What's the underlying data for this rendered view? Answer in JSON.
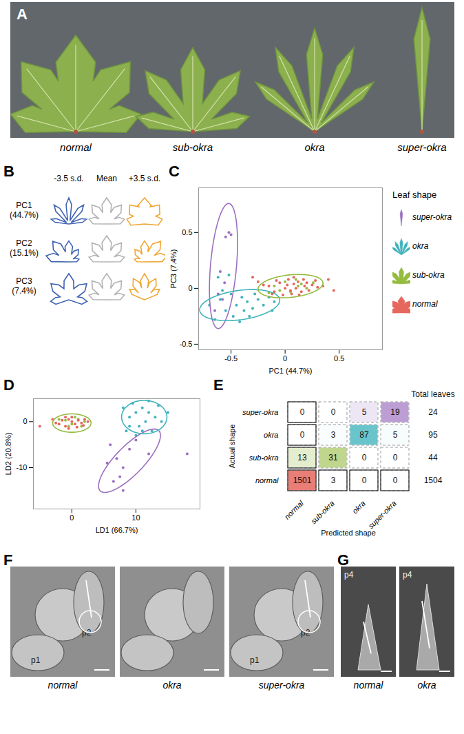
{
  "panels": {
    "A": {
      "title": "A",
      "labels": [
        "normal",
        "sub-okra",
        "okra",
        "super-okra"
      ]
    },
    "B": {
      "title": "B",
      "columns": [
        "-3.5 s.d.",
        "Mean",
        "+3.5 s.d."
      ],
      "rows": [
        [
          "PC1",
          "(44.7%)"
        ],
        [
          "PC2",
          "(15.1%)"
        ],
        [
          "PC3",
          "(7.4%)"
        ]
      ]
    },
    "F": {
      "title": "F",
      "images": [
        {
          "label": "normal",
          "marks": [
            "p2",
            "p1"
          ]
        },
        {
          "label": "okra",
          "marks": []
        },
        {
          "label": "super-okra",
          "marks": [
            "p2",
            "p1"
          ]
        }
      ]
    },
    "G": {
      "title": "G",
      "images": [
        {
          "label": "normal",
          "marks": [
            "p4"
          ]
        },
        {
          "label": "okra",
          "marks": [
            "p4"
          ]
        }
      ]
    }
  },
  "chart_data": [
    {
      "type": "scatter",
      "title": "C",
      "x_label": "PC1 (44.7%)",
      "y_label": "PC3 (7.4%)",
      "xlim": [
        -0.8,
        0.9
      ],
      "ylim": [
        -0.55,
        0.9
      ],
      "xticks": [
        -0.5,
        0,
        0.5
      ],
      "yticks": [
        -0.5,
        0,
        0.5
      ],
      "legend": "right",
      "legend_title": "Leaf shape",
      "series": [
        {
          "name": "super-okra",
          "color": "#9b6fc0",
          "values": [
            [
              -0.52,
              0.5
            ],
            [
              -0.5,
              0.48
            ],
            [
              -0.55,
              0.46
            ],
            [
              -0.6,
              0.15
            ],
            [
              -0.62,
              -0.05
            ],
            [
              -0.58,
              -0.1
            ],
            [
              -0.56,
              0.05
            ],
            [
              -0.65,
              -0.2
            ]
          ],
          "ellipse": {
            "center": [
              -0.57,
              0.2
            ],
            "axis1": [
              0.05,
              0.56
            ],
            "axis2": [
              0.12,
              -0.01
            ]
          }
        },
        {
          "name": "okra",
          "color": "#3fb3bd",
          "values": [
            [
              -0.7,
              -0.15
            ],
            [
              -0.65,
              -0.28
            ],
            [
              -0.6,
              -0.1
            ],
            [
              -0.55,
              -0.2
            ],
            [
              -0.5,
              -0.05
            ],
            [
              -0.48,
              -0.25
            ],
            [
              -0.45,
              -0.15
            ],
            [
              -0.4,
              -0.08
            ],
            [
              -0.38,
              -0.2
            ],
            [
              -0.35,
              -0.12
            ],
            [
              -0.3,
              -0.18
            ],
            [
              -0.28,
              -0.05
            ],
            [
              -0.25,
              -0.1
            ],
            [
              -0.2,
              -0.15
            ],
            [
              -0.15,
              -0.08
            ],
            [
              -0.12,
              -0.2
            ],
            [
              -0.42,
              -0.3
            ],
            [
              -0.58,
              -0.02
            ],
            [
              -0.33,
              -0.25
            ],
            [
              -0.1,
              -0.12
            ],
            [
              -0.62,
              0.1
            ],
            [
              -0.52,
              0.12
            ]
          ],
          "ellipse": {
            "center": [
              -0.42,
              -0.15
            ],
            "axis1": [
              0.37,
              0.05
            ],
            "axis2": [
              -0.02,
              0.13
            ]
          }
        },
        {
          "name": "sub-okra",
          "color": "#95bb3f",
          "values": [
            [
              -0.1,
              0.02
            ],
            [
              0.0,
              0.06
            ],
            [
              0.05,
              -0.03
            ],
            [
              0.12,
              0.02
            ],
            [
              0.2,
              0.0
            ],
            [
              0.26,
              0.05
            ],
            [
              -0.05,
              -0.02
            ],
            [
              0.1,
              0.08
            ],
            [
              -0.15,
              -0.04
            ],
            [
              0.15,
              0.04
            ]
          ],
          "ellipse": {
            "center": [
              0.05,
              0.02
            ],
            "axis1": [
              0.3,
              0.03
            ],
            "axis2": [
              -0.01,
              0.1
            ]
          }
        },
        {
          "name": "normal",
          "color": "#e5675d",
          "values": [
            [
              -0.15,
              0.02
            ],
            [
              -0.1,
              -0.03
            ],
            [
              -0.05,
              0.05
            ],
            [
              0,
              0
            ],
            [
              0.02,
              0.03
            ],
            [
              0.05,
              -0.02
            ],
            [
              0.08,
              0.04
            ],
            [
              0.1,
              0
            ],
            [
              0.12,
              0.06
            ],
            [
              0.15,
              -0.03
            ],
            [
              0.18,
              0.02
            ],
            [
              0.2,
              0.05
            ],
            [
              0.22,
              -0.02
            ],
            [
              0.25,
              0.03
            ],
            [
              0.3,
              0.01
            ],
            [
              -0.08,
              0.07
            ],
            [
              0.03,
              0.08
            ],
            [
              0.06,
              -0.05
            ],
            [
              0.13,
              -0.06
            ],
            [
              -0.02,
              -0.06
            ],
            [
              0.28,
              0.07
            ],
            [
              0.35,
              0.02
            ],
            [
              0.45,
              -0.02
            ],
            [
              -0.2,
              0.03
            ],
            [
              -0.12,
              -0.05
            ],
            [
              0.17,
              0.08
            ],
            [
              0.08,
              0.1
            ],
            [
              -0.25,
              0.06
            ],
            [
              0.4,
              0.08
            ],
            [
              -0.3,
              0.1
            ]
          ]
        }
      ]
    },
    {
      "type": "scatter",
      "title": "D",
      "x_label": "LD1 (66.7%)",
      "y_label": "LD2 (20.8%)",
      "xlim": [
        -6,
        20
      ],
      "ylim": [
        -19,
        5
      ],
      "xticks": [
        0,
        10
      ],
      "yticks": [
        -10,
        0
      ],
      "series": [
        {
          "name": "super-okra",
          "color": "#9b6fc0",
          "values": [
            [
              6,
              -5
            ],
            [
              7,
              -8
            ],
            [
              7.5,
              -12
            ],
            [
              8,
              -10
            ],
            [
              9,
              -6
            ],
            [
              10,
              -4
            ],
            [
              6.5,
              -13
            ],
            [
              5.5,
              -9
            ],
            [
              12,
              -7
            ],
            [
              18,
              -7
            ],
            [
              8,
              -15
            ]
          ],
          "ellipse": {
            "center": [
              9,
              -8.5
            ],
            "axis1": [
              4.3,
              6.8
            ],
            "axis2": [
              2.2,
              -1.2
            ]
          }
        },
        {
          "name": "okra",
          "color": "#3fb3bd",
          "values": [
            [
              8,
              3
            ],
            [
              9,
              1
            ],
            [
              9.5,
              4
            ],
            [
              10,
              2
            ],
            [
              10.5,
              -1
            ],
            [
              11,
              3
            ],
            [
              11.5,
              0
            ],
            [
              12,
              2
            ],
            [
              12.5,
              -2
            ],
            [
              13,
              1
            ],
            [
              13.5,
              3.5
            ],
            [
              10,
              -3
            ],
            [
              11,
              -2
            ],
            [
              9,
              -1
            ],
            [
              14,
              0
            ],
            [
              12,
              4.5
            ],
            [
              8.5,
              -2
            ],
            [
              15,
              2
            ]
          ],
          "ellipse": {
            "center": [
              11.3,
              1
            ],
            "axis1": [
              3.5,
              0.5
            ],
            "axis2": [
              -0.5,
              3.6
            ]
          }
        },
        {
          "name": "sub-okra",
          "color": "#95bb3f",
          "values": [
            [
              -1,
              0.3
            ],
            [
              0,
              -0.5
            ],
            [
              1,
              0.5
            ],
            [
              2,
              0
            ],
            [
              -0.5,
              -1
            ],
            [
              0.5,
              1
            ],
            [
              1.5,
              -1
            ],
            [
              -2,
              0.5
            ]
          ],
          "ellipse": {
            "center": [
              0,
              -0.3
            ],
            "axis1": [
              3,
              0
            ],
            "axis2": [
              0,
              2
            ]
          }
        },
        {
          "name": "normal",
          "color": "#e5675d",
          "values": [
            [
              -3,
              0.5
            ],
            [
              -2,
              -0.5
            ],
            [
              -1.5,
              0.3
            ],
            [
              -1,
              -1
            ],
            [
              -0.5,
              0.5
            ],
            [
              0,
              0
            ],
            [
              0.5,
              -0.5
            ],
            [
              1,
              0.3
            ],
            [
              1.5,
              -0.3
            ],
            [
              2,
              0.5
            ],
            [
              -2.5,
              -0.3
            ],
            [
              0,
              1
            ],
            [
              0.8,
              -1.2
            ],
            [
              -1,
              1
            ],
            [
              1.8,
              -0.8
            ],
            [
              -5,
              -1
            ],
            [
              -0.5,
              -1.5
            ],
            [
              2.5,
              0
            ]
          ]
        }
      ]
    },
    {
      "type": "heatmap",
      "title": "E",
      "x_label": "Predicted shape",
      "y_label": "Actual shape",
      "categories_x": [
        "normal",
        "sub-okra",
        "okra",
        "super-okra"
      ],
      "categories_y": [
        "super-okra",
        "okra",
        "sub-okra",
        "normal"
      ],
      "cells": [
        [
          0,
          0,
          5,
          19
        ],
        [
          0,
          3,
          87,
          5
        ],
        [
          13,
          31,
          0,
          0
        ],
        [
          1501,
          3,
          0,
          0
        ]
      ],
      "colors": [
        "#9b6fc0",
        "#3fb3bd",
        "#95bb3f",
        "#e5675d"
      ],
      "totals_label": "Total leaves",
      "totals": [
        24,
        95,
        44,
        1504
      ],
      "data_labels": true
    }
  ]
}
